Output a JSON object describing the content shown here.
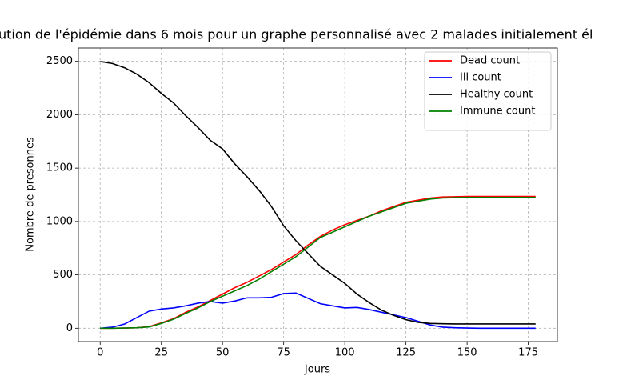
{
  "chart_data": {
    "type": "line",
    "title": "ution de l'épidémie dans 6 mois pour un graphe personnalisé avec 2 malades initialement él",
    "xlabel": "Jours",
    "ylabel": "Nombre de presonnes",
    "x": [
      0,
      5,
      10,
      15,
      20,
      25,
      30,
      35,
      40,
      45,
      50,
      55,
      60,
      65,
      70,
      75,
      80,
      85,
      90,
      95,
      100,
      105,
      110,
      115,
      120,
      125,
      130,
      135,
      140,
      145,
      150,
      155,
      160,
      165,
      170,
      175,
      178
    ],
    "series": [
      {
        "name": "Dead count",
        "color": "#ff0000",
        "values": [
          0,
          0,
          2,
          5,
          15,
          50,
          90,
          150,
          200,
          260,
          320,
          380,
          430,
          490,
          550,
          620,
          690,
          780,
          860,
          920,
          970,
          1010,
          1050,
          1100,
          1140,
          1180,
          1200,
          1220,
          1230,
          1232,
          1235,
          1235,
          1235,
          1235,
          1235,
          1235,
          1235
        ]
      },
      {
        "name": "Ill count",
        "color": "#0000ff",
        "values": [
          0,
          10,
          40,
          100,
          160,
          180,
          190,
          210,
          235,
          250,
          235,
          255,
          285,
          285,
          290,
          325,
          330,
          280,
          230,
          210,
          190,
          195,
          175,
          150,
          125,
          100,
          65,
          30,
          10,
          5,
          2,
          0,
          0,
          0,
          0,
          0,
          0
        ]
      },
      {
        "name": "Healthy count",
        "color": "#000000",
        "values": [
          2498,
          2480,
          2440,
          2380,
          2300,
          2200,
          2110,
          1990,
          1880,
          1760,
          1680,
          1540,
          1420,
          1290,
          1140,
          960,
          820,
          700,
          580,
          500,
          420,
          320,
          240,
          170,
          120,
          80,
          55,
          45,
          42,
          40,
          40,
          40,
          40,
          40,
          40,
          40,
          40
        ]
      },
      {
        "name": "Immune count",
        "color": "#008000",
        "values": [
          0,
          0,
          2,
          5,
          12,
          45,
          85,
          140,
          190,
          250,
          300,
          350,
          400,
          460,
          530,
          600,
          670,
          760,
          850,
          900,
          950,
          1000,
          1050,
          1090,
          1130,
          1170,
          1190,
          1210,
          1220,
          1223,
          1225,
          1225,
          1225,
          1225,
          1225,
          1225,
          1225
        ]
      }
    ],
    "xlim": [
      -8.9,
      186.9
    ],
    "ylim": [
      -125,
      2625
    ],
    "xticks": [
      0,
      25,
      50,
      75,
      100,
      125,
      150,
      175
    ],
    "yticks": [
      0,
      500,
      1000,
      1500,
      2000,
      2500
    ],
    "grid": true,
    "legend": "upper right"
  }
}
